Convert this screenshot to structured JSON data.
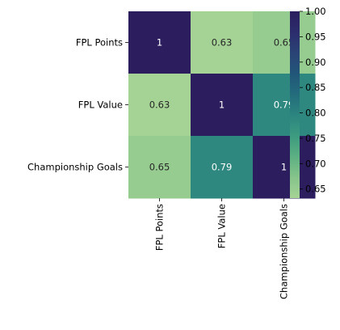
{
  "chart_data": {
    "type": "heatmap",
    "row_labels": [
      "FPL Points",
      "FPL Value",
      "Championship Goals"
    ],
    "col_labels": [
      "FPL Points",
      "FPL Value",
      "Championship Goals"
    ],
    "values": [
      [
        1,
        0.63,
        0.65
      ],
      [
        0.63,
        1,
        0.79
      ],
      [
        0.65,
        0.79,
        1
      ]
    ],
    "annotations": [
      [
        "1",
        "0.63",
        "0.65"
      ],
      [
        "0.63",
        "1",
        "0.79"
      ],
      [
        "0.65",
        "0.79",
        "1"
      ]
    ],
    "colorbar": {
      "min": 0.632,
      "max": 1.0,
      "ticks": [
        "1.00",
        "0.95",
        "0.90",
        "0.85",
        "0.80",
        "0.75",
        "0.70",
        "0.65"
      ],
      "tick_values": [
        1.0,
        0.95,
        0.9,
        0.85,
        0.8,
        0.75,
        0.7,
        0.65
      ]
    },
    "colormap": "crest",
    "colormap_stops": [
      "#a5d395",
      "#86c48b",
      "#5cb082",
      "#3c9b80",
      "#2c857f",
      "#236c7c",
      "#225679",
      "#2a4375",
      "#2c2d6c",
      "#2c1e5e"
    ]
  }
}
